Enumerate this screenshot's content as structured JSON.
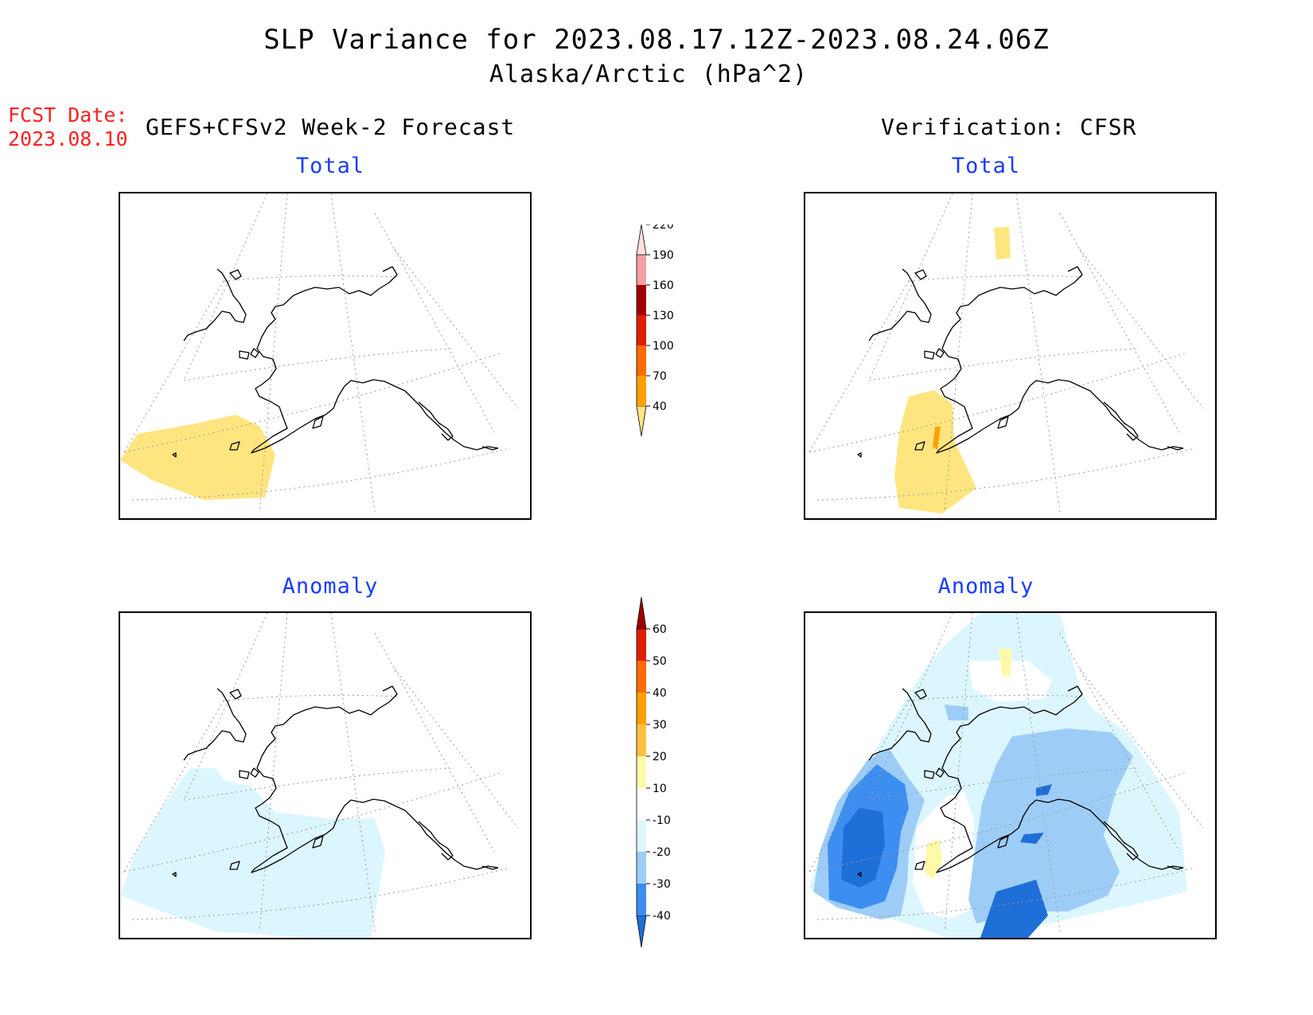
{
  "title": "SLP Variance for 2023.08.17.12Z-2023.08.24.06Z",
  "subtitle": "Alaska/Arctic (hPa^2)",
  "fcst_date_label": "FCST Date:",
  "fcst_date_value": "2023.08.10",
  "left_column_title": "GEFS+CFSv2 Week-2 Forecast",
  "right_column_title": "Verification: CFSR",
  "panels": {
    "forecast_total": {
      "label": "Total"
    },
    "forecast_anomaly": {
      "label": "Anomaly"
    },
    "verification_total": {
      "label": "Total"
    },
    "verification_anomaly": {
      "label": "Anomaly"
    }
  },
  "total_colorbar": {
    "ticks": [
      "40",
      "70",
      "100",
      "130",
      "160",
      "190",
      "220"
    ],
    "colors": [
      "#ffe57f",
      "#ffa000",
      "#ff6a00",
      "#e01e00",
      "#a00000",
      "#f4a0a0",
      "#ffe0e0"
    ]
  },
  "anomaly_colorbar": {
    "ticks": [
      "-40",
      "-30",
      "-20",
      "-10",
      "10",
      "20",
      "30",
      "40",
      "50",
      "60"
    ],
    "colors": [
      "#1f6fd8",
      "#3c8ef0",
      "#9dcdf7",
      "#dcf6ff",
      "#ffffff",
      "#fff9a8",
      "#ffc040",
      "#ffa000",
      "#ff6a00",
      "#e01e00",
      "#a00000"
    ]
  }
}
